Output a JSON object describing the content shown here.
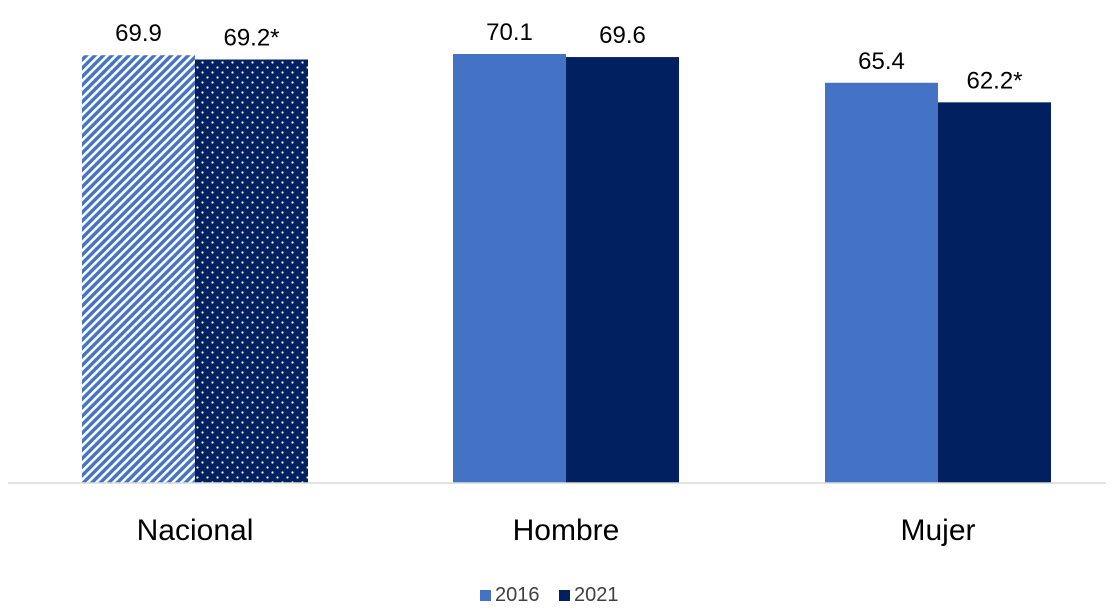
{
  "chart_data": {
    "type": "bar",
    "categories": [
      "Nacional",
      "Hombre",
      "Mujer"
    ],
    "series": [
      {
        "name": "2016",
        "values": [
          69.9,
          70.1,
          65.4
        ],
        "labels": [
          "69.9",
          "70.1",
          "65.4"
        ]
      },
      {
        "name": "2021",
        "values": [
          69.2,
          69.6,
          62.2
        ],
        "labels": [
          "69.2*",
          "69.6",
          "62.2*"
        ]
      }
    ],
    "ylim": [
      0,
      70.1
    ],
    "grid": false,
    "legend_position": "bottom-center",
    "patterned_category": "Nacional",
    "colors": {
      "2016": "#4472C4",
      "2021": "#002060",
      "axis": "#D9D9D9"
    }
  }
}
